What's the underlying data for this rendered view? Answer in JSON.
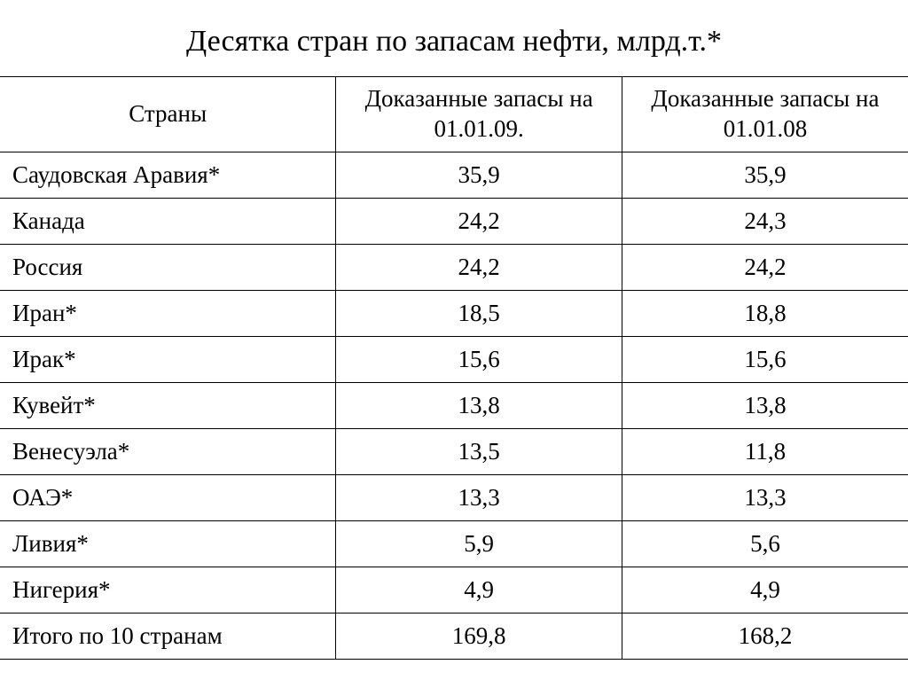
{
  "title": "Десятка стран по запасам нефти, млрд.т.*",
  "table": {
    "columns": [
      "Страны",
      "Доказанные запасы на 01.01.09.",
      "Доказанные запасы на 01.01.08"
    ],
    "rows": [
      {
        "country": "Саудовская Аравия*",
        "v09": "35,9",
        "v08": "35,9"
      },
      {
        "country": "Канада",
        "v09": "24,2",
        "v08": "24,3"
      },
      {
        "country": "Россия",
        "v09": "24,2",
        "v08": "24,2"
      },
      {
        "country": "Иран*",
        "v09": "18,5",
        "v08": "18,8"
      },
      {
        "country": "Ирак*",
        "v09": "15,6",
        "v08": "15,6"
      },
      {
        "country": "Кувейт*",
        "v09": "13,8",
        "v08": "13,8"
      },
      {
        "country": "Венесуэла*",
        "v09": "13,5",
        "v08": "11,8"
      },
      {
        "country": "ОАЭ*",
        "v09": "13,3",
        "v08": "13,3"
      },
      {
        "country": "Ливия*",
        "v09": "5,9",
        "v08": "5,6"
      },
      {
        "country": "Нигерия*",
        "v09": "4,9",
        "v08": "4,9"
      },
      {
        "country": "Итого по 10 странам",
        "v09": "169,8",
        "v08": "168,2"
      }
    ],
    "title_fontsize": 34,
    "cell_fontsize": 27,
    "border_color": "#000000",
    "text_color": "#000000",
    "background_color": "#ffffff",
    "col_widths_percent": [
      37,
      31.5,
      31.5
    ],
    "column_alignment": [
      "left",
      "center",
      "center"
    ]
  }
}
